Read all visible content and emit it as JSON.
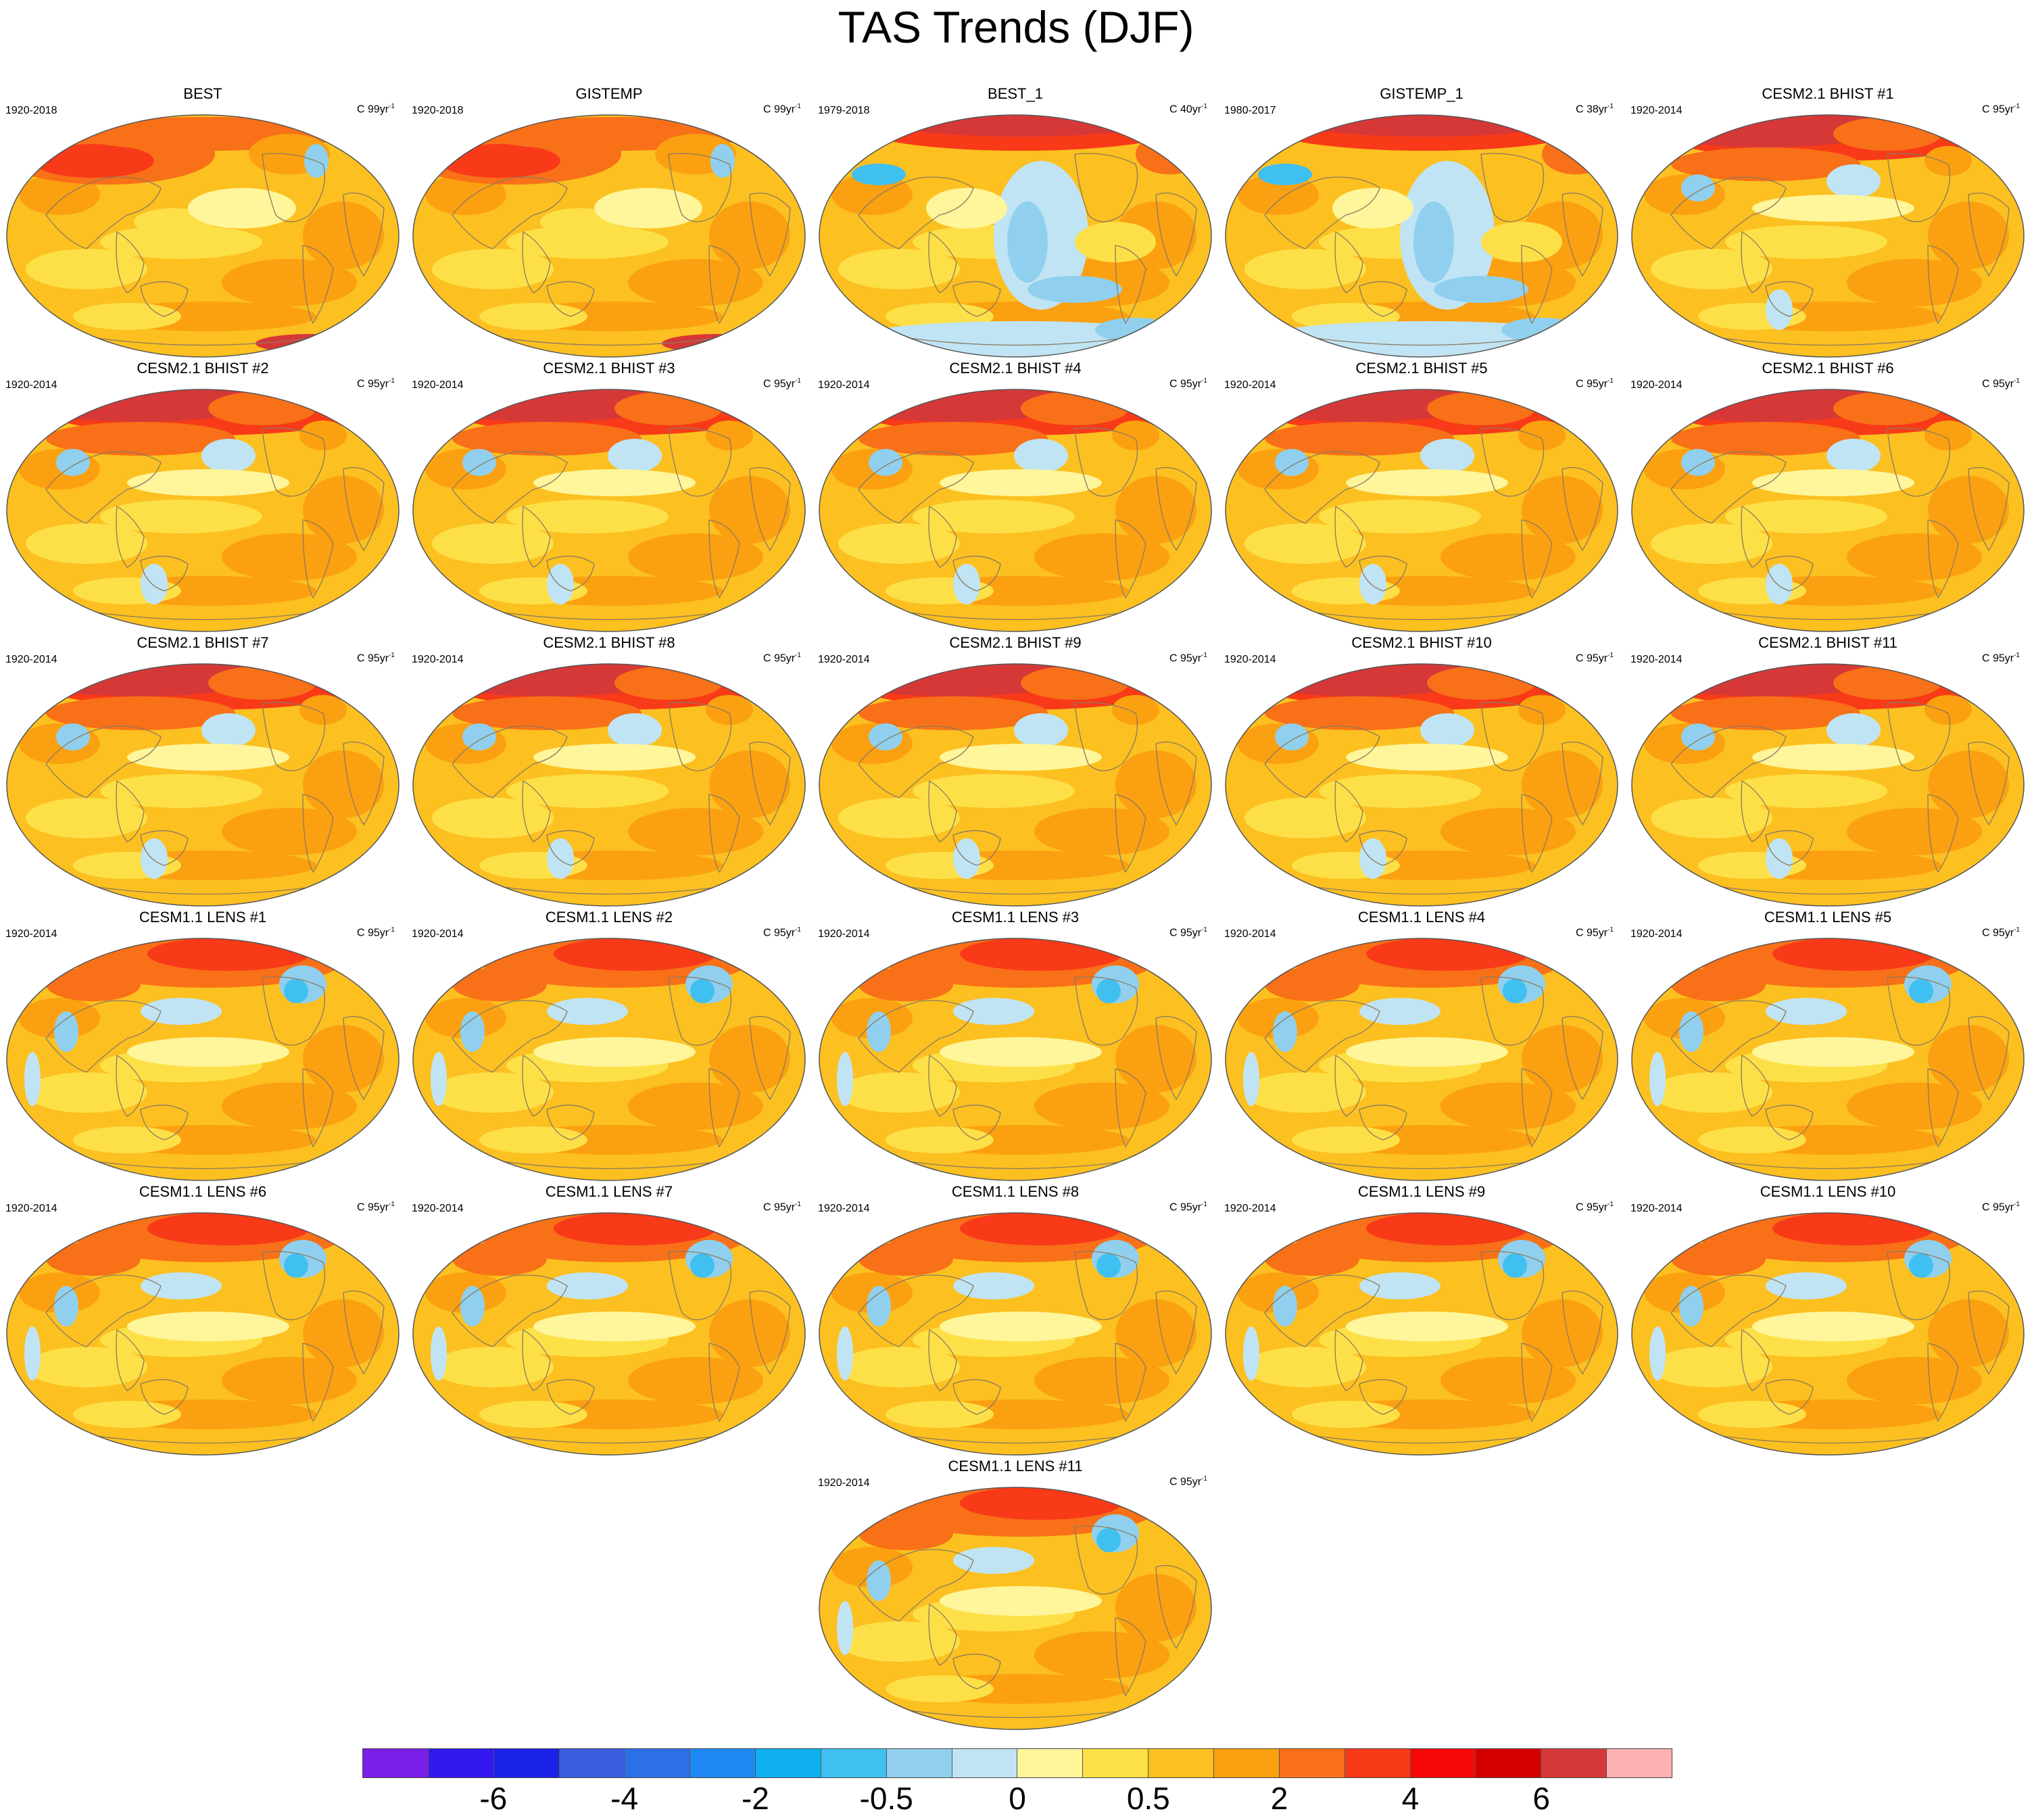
{
  "figure": {
    "title": "TAS Trends (DJF)"
  },
  "colorbar": {
    "colors": [
      "#7a1fe8",
      "#3418f0",
      "#1a23e8",
      "#3a5de0",
      "#2c6fe8",
      "#1e88f2",
      "#0eb0f0",
      "#40c0f0",
      "#90d0ee",
      "#c0e4f4",
      "#fff59a",
      "#fde048",
      "#fcc020",
      "#fba010",
      "#f87018",
      "#f83a18",
      "#f50808",
      "#d40000",
      "#d63838",
      "#ffb0b0"
    ],
    "tick_labels": [
      "-6",
      "-4",
      "-2",
      "-0.5",
      "0",
      "0.5",
      "2",
      "4",
      "6"
    ],
    "tick_boundaries": [
      2,
      4,
      6,
      8,
      10,
      12,
      14,
      16,
      18
    ]
  },
  "panels": [
    {
      "title": "BEST",
      "years": "1920-2018",
      "unit_prefix": "C 99yr",
      "unit_exp": "-1",
      "style": "obs"
    },
    {
      "title": "GISTEMP",
      "years": "1920-2018",
      "unit_prefix": "C 99yr",
      "unit_exp": "-1",
      "style": "obs"
    },
    {
      "title": "BEST_1",
      "years": "1979-2018",
      "unit_prefix": "C 40yr",
      "unit_exp": "-1",
      "style": "recent"
    },
    {
      "title": "GISTEMP_1",
      "years": "1980-2017",
      "unit_prefix": "C 38yr",
      "unit_exp": "-1",
      "style": "recent"
    },
    {
      "title": "CESM2.1 BHIST #1",
      "years": "1920-2014",
      "unit_prefix": "C 95yr",
      "unit_exp": "-1",
      "style": "model"
    },
    {
      "title": "CESM2.1 BHIST #2",
      "years": "1920-2014",
      "unit_prefix": "C 95yr",
      "unit_exp": "-1",
      "style": "model"
    },
    {
      "title": "CESM2.1 BHIST #3",
      "years": "1920-2014",
      "unit_prefix": "C 95yr",
      "unit_exp": "-1",
      "style": "model"
    },
    {
      "title": "CESM2.1 BHIST #4",
      "years": "1920-2014",
      "unit_prefix": "C 95yr",
      "unit_exp": "-1",
      "style": "model"
    },
    {
      "title": "CESM2.1 BHIST #5",
      "years": "1920-2014",
      "unit_prefix": "C 95yr",
      "unit_exp": "-1",
      "style": "model"
    },
    {
      "title": "CESM2.1 BHIST #6",
      "years": "1920-2014",
      "unit_prefix": "C 95yr",
      "unit_exp": "-1",
      "style": "model"
    },
    {
      "title": "CESM2.1 BHIST #7",
      "years": "1920-2014",
      "unit_prefix": "C 95yr",
      "unit_exp": "-1",
      "style": "model"
    },
    {
      "title": "CESM2.1 BHIST #8",
      "years": "1920-2014",
      "unit_prefix": "C 95yr",
      "unit_exp": "-1",
      "style": "model"
    },
    {
      "title": "CESM2.1 BHIST #9",
      "years": "1920-2014",
      "unit_prefix": "C 95yr",
      "unit_exp": "-1",
      "style": "model"
    },
    {
      "title": "CESM2.1 BHIST #10",
      "years": "1920-2014",
      "unit_prefix": "C 95yr",
      "unit_exp": "-1",
      "style": "model"
    },
    {
      "title": "CESM2.1 BHIST #11",
      "years": "1920-2014",
      "unit_prefix": "C 95yr",
      "unit_exp": "-1",
      "style": "model"
    },
    {
      "title": "CESM1.1 LENS #1",
      "years": "1920-2014",
      "unit_prefix": "C 95yr",
      "unit_exp": "-1",
      "style": "lens"
    },
    {
      "title": "CESM1.1 LENS #2",
      "years": "1920-2014",
      "unit_prefix": "C 95yr",
      "unit_exp": "-1",
      "style": "lens"
    },
    {
      "title": "CESM1.1 LENS #3",
      "years": "1920-2014",
      "unit_prefix": "C 95yr",
      "unit_exp": "-1",
      "style": "lens"
    },
    {
      "title": "CESM1.1 LENS #4",
      "years": "1920-2014",
      "unit_prefix": "C 95yr",
      "unit_exp": "-1",
      "style": "lens"
    },
    {
      "title": "CESM1.1 LENS #5",
      "years": "1920-2014",
      "unit_prefix": "C 95yr",
      "unit_exp": "-1",
      "style": "lens"
    },
    {
      "title": "CESM1.1 LENS #6",
      "years": "1920-2014",
      "unit_prefix": "C 95yr",
      "unit_exp": "-1",
      "style": "lens"
    },
    {
      "title": "CESM1.1 LENS #7",
      "years": "1920-2014",
      "unit_prefix": "C 95yr",
      "unit_exp": "-1",
      "style": "lens"
    },
    {
      "title": "CESM1.1 LENS #8",
      "years": "1920-2014",
      "unit_prefix": "C 95yr",
      "unit_exp": "-1",
      "style": "lens"
    },
    {
      "title": "CESM1.1 LENS #9",
      "years": "1920-2014",
      "unit_prefix": "C 95yr",
      "unit_exp": "-1",
      "style": "lens"
    },
    {
      "title": "CESM1.1 LENS #10",
      "years": "1920-2014",
      "unit_prefix": "C 95yr",
      "unit_exp": "-1",
      "style": "lens"
    },
    {
      "title": "CESM1.1 LENS #11",
      "years": "1920-2014",
      "unit_prefix": "C 95yr",
      "unit_exp": "-1",
      "style": "lens"
    }
  ]
}
